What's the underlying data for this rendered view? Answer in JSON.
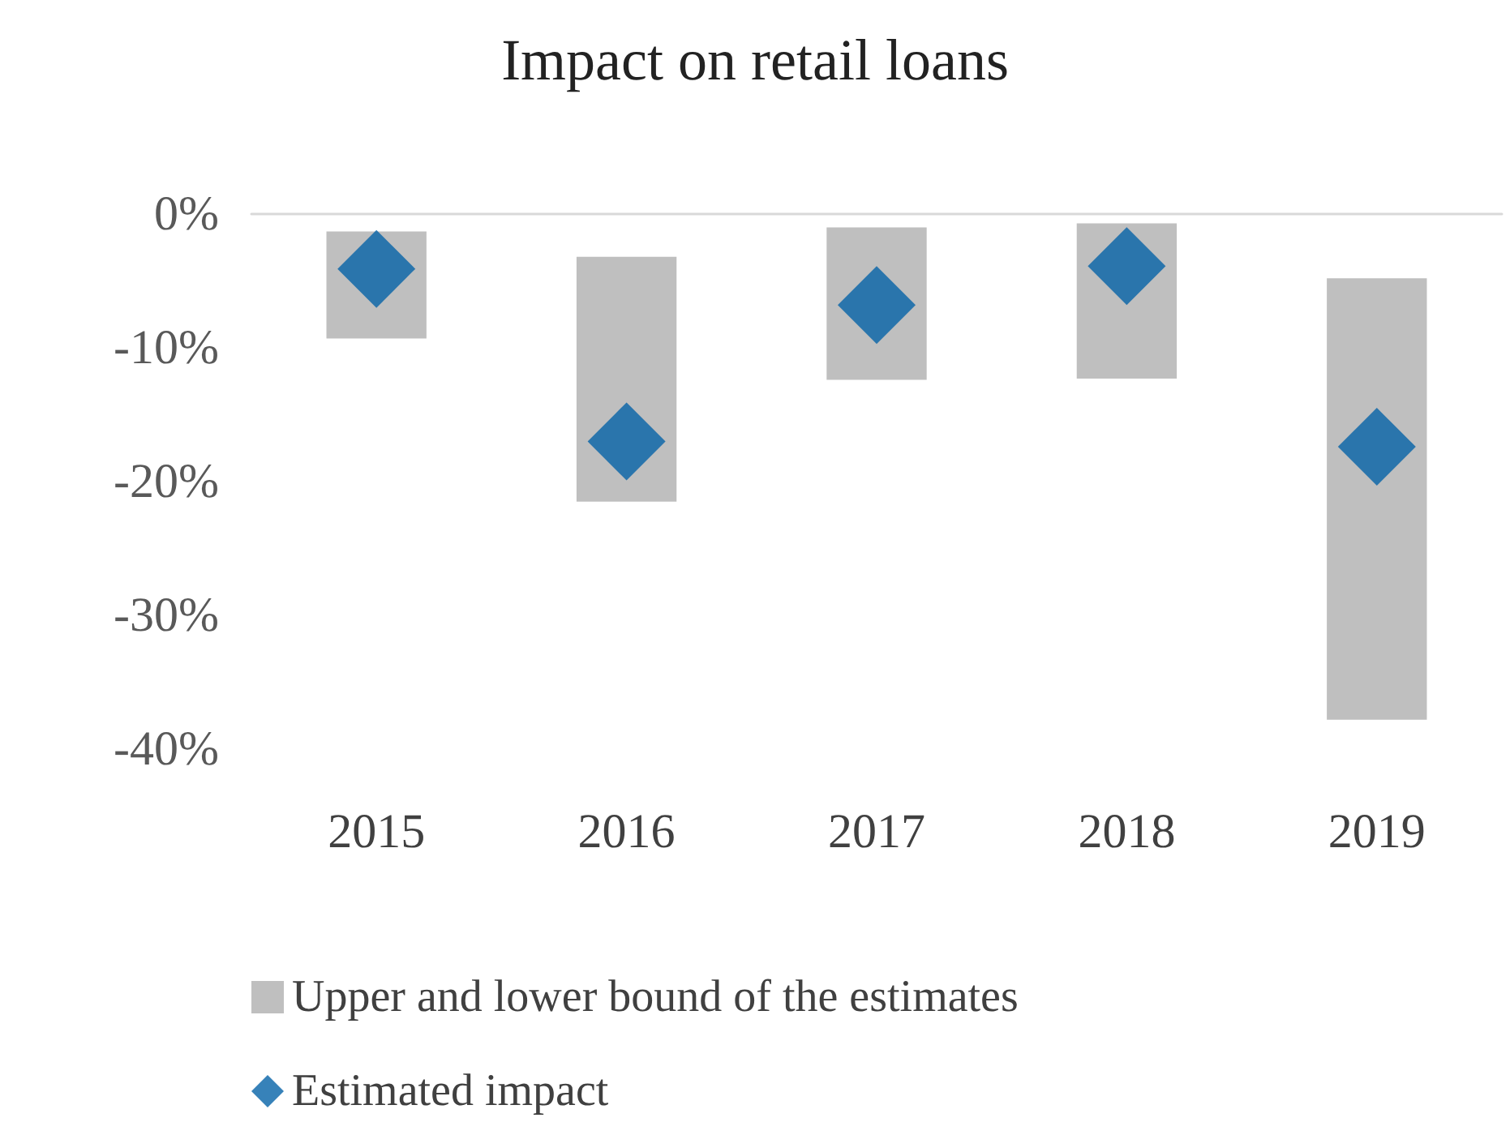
{
  "chart_data": {
    "type": "bar",
    "title": "Impact on retail loans",
    "categories": [
      "2015",
      "2016",
      "2017",
      "2018",
      "2019"
    ],
    "series": [
      {
        "name": "Upper and lower bound of the estimates",
        "color": "#bfbfbf",
        "values": [
          -8.0,
          -18.3,
          -11.4,
          -11.6,
          -33.0
        ],
        "base": [
          -1.3,
          -3.2,
          -1.0,
          -0.7,
          -4.8
        ]
      },
      {
        "name": "Estimated impact",
        "type": "scatter",
        "color": "#0563a8",
        "values": [
          -4.1,
          -17.0,
          -6.8,
          -3.9,
          -17.4
        ]
      }
    ],
    "ylim": [
      -40,
      0
    ],
    "yticks": [
      {
        "value": 0,
        "label": "0%"
      },
      {
        "value": -10,
        "label": "-10%"
      },
      {
        "value": -20,
        "label": "-20%"
      },
      {
        "value": -30,
        "label": "-30%"
      },
      {
        "value": -40,
        "label": "-40%"
      }
    ],
    "marker": "diamond",
    "grid": false,
    "legend": "bottom"
  }
}
